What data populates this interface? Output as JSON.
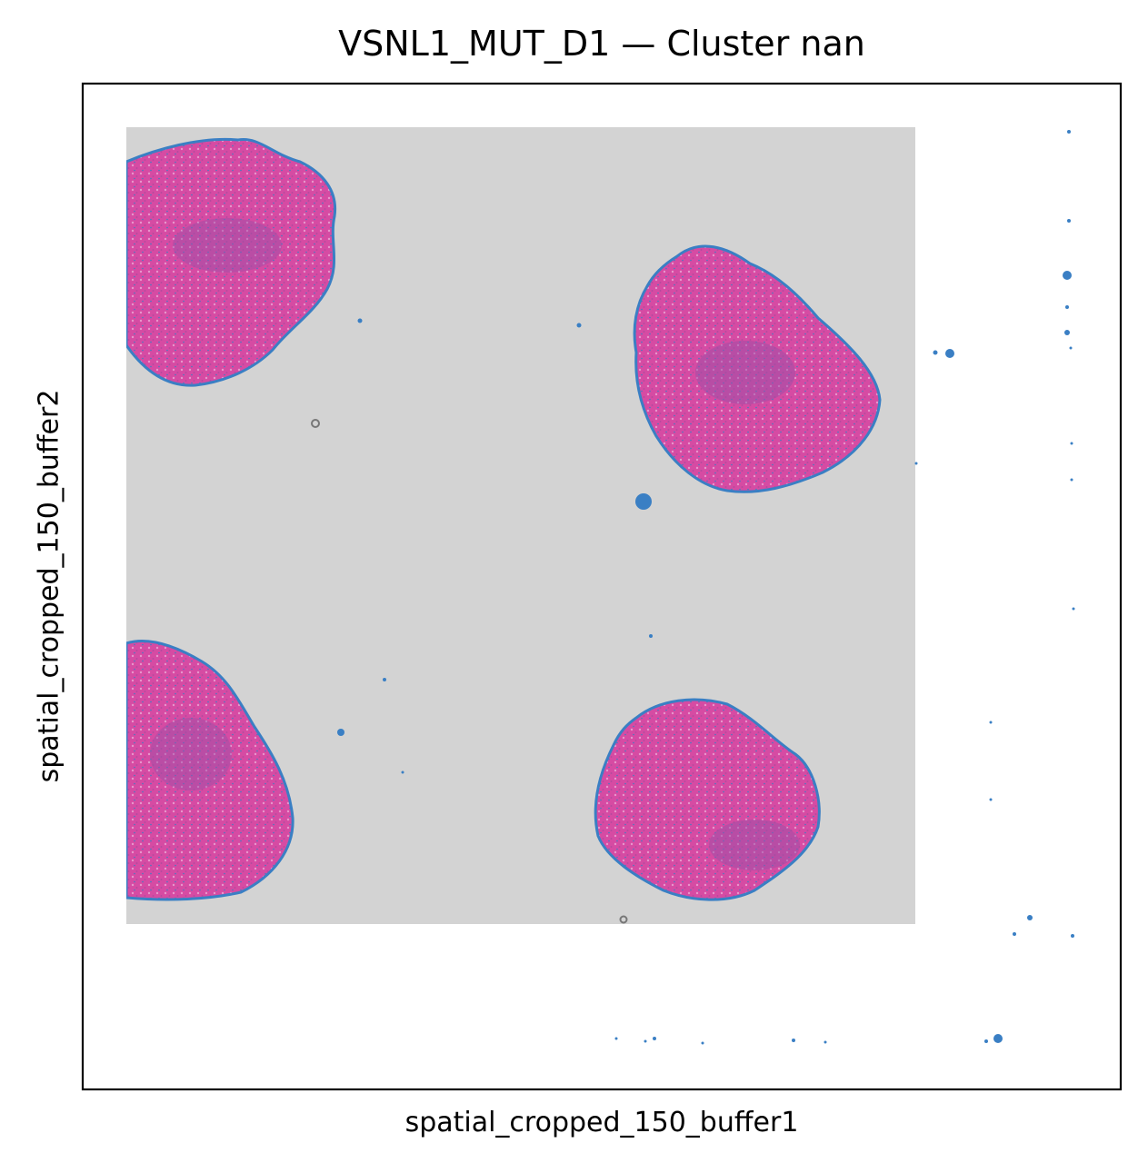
{
  "chart_data": {
    "type": "scatter",
    "title": "VSNL1_MUT_D1 — Cluster nan",
    "xlabel": "spatial_cropped_150_buffer1",
    "ylabel": "spatial_cropped_150_buffer2",
    "xticks": [],
    "yticks": [],
    "grid": false,
    "legend": "none",
    "background_image": "H&E tissue section",
    "colors": {
      "spots": "#3a7fc4",
      "tissue": "#d24aa0",
      "tissue_light": "#e08ac4",
      "slide_background": "#d3d3d3"
    }
  }
}
